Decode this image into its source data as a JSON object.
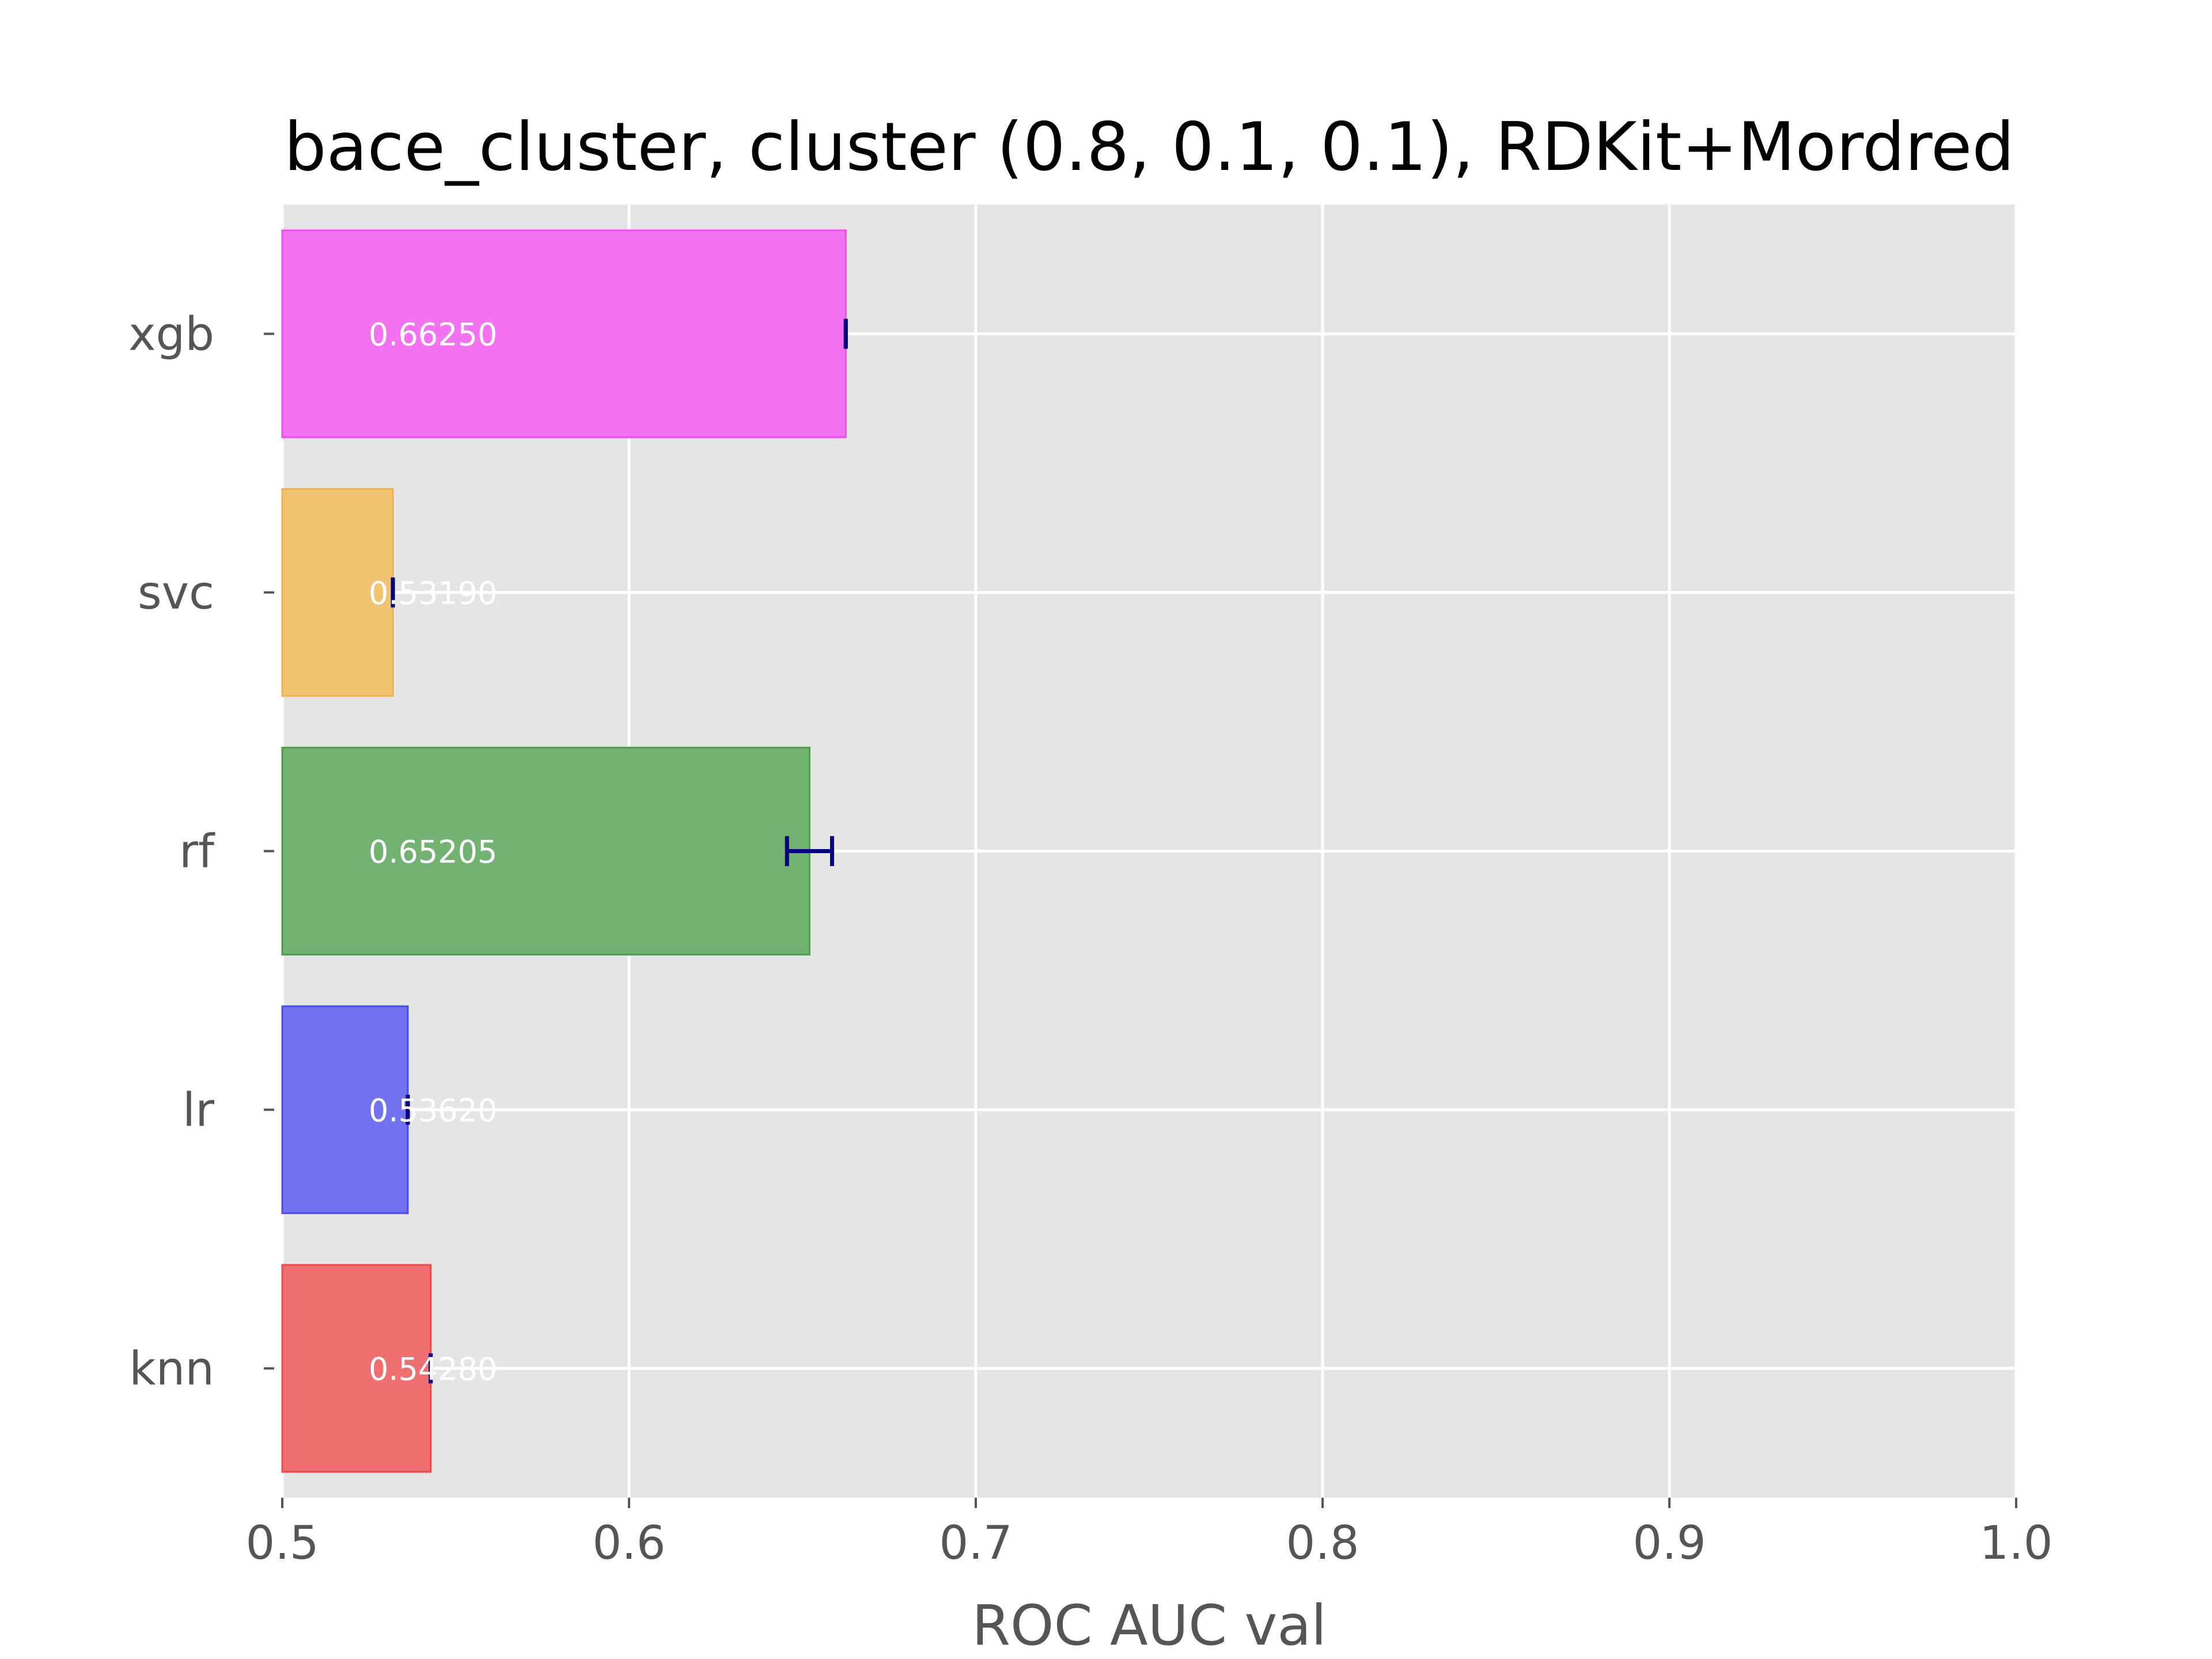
{
  "chart_data": {
    "type": "bar",
    "orientation": "horizontal",
    "title": "bace_cluster, cluster (0.8, 0.1, 0.1), RDKit+Mordred",
    "xlabel": "ROC AUC val",
    "ylabel": "",
    "xlim": [
      0.5,
      1.0
    ],
    "xticks": [
      "0.5",
      "0.6",
      "0.7",
      "0.8",
      "0.9",
      "1.0"
    ],
    "grid": true,
    "categories": [
      "knn",
      "lr",
      "rf",
      "svc",
      "xgb"
    ],
    "values": [
      0.5428,
      0.5362,
      0.65205,
      0.5319,
      0.6625
    ],
    "value_labels": [
      "0.54280",
      "0.53620",
      "0.65205",
      "0.53190",
      "0.66250"
    ],
    "errors": [
      0.0,
      0.0,
      0.0065,
      0.0,
      0.0
    ],
    "colors": [
      "#f07070",
      "#7373f2",
      "#72b372",
      "#f2c472",
      "#f272f2"
    ],
    "edge_colors": [
      "#f04848",
      "#4a4af0",
      "#4a9a4a",
      "#f0b04a",
      "#f04af0"
    ],
    "error_color": "#000080",
    "background": "#e5e5e5"
  }
}
